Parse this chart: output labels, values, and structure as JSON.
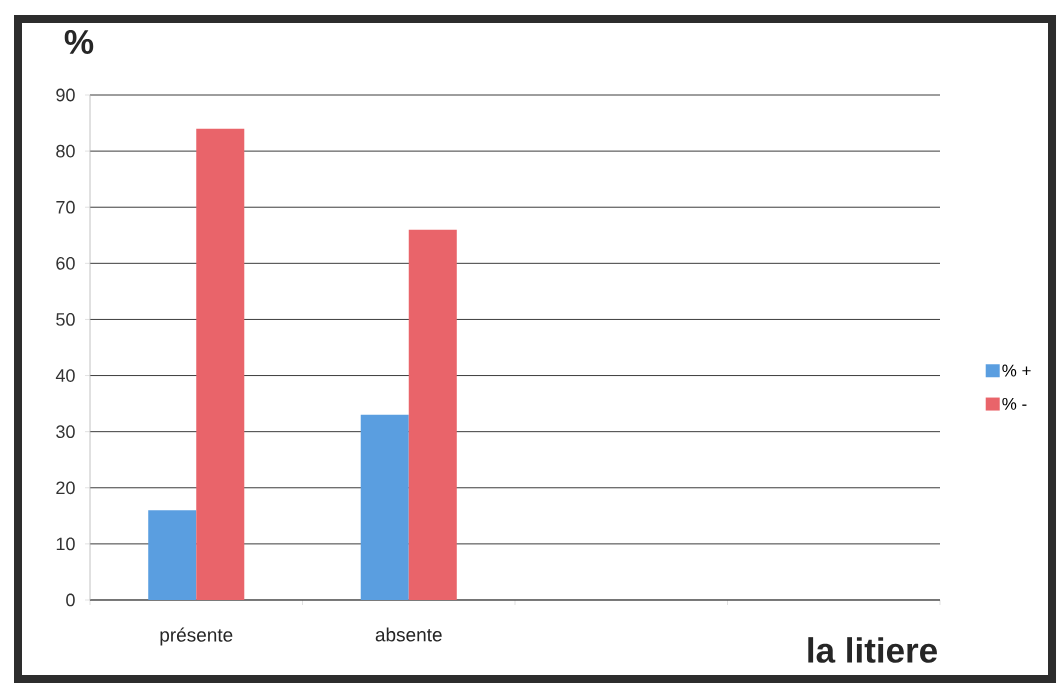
{
  "chart_data": {
    "type": "bar",
    "xlabel": "la litiere",
    "ylabel": "%",
    "categories": [
      "présente",
      "absente",
      null,
      null
    ],
    "series": [
      {
        "name": "% +",
        "color": "#5a9ee0",
        "values": [
          16,
          33,
          null,
          null
        ]
      },
      {
        "name": "% -",
        "color": "#e9646a",
        "values": [
          84,
          66,
          null,
          null
        ]
      }
    ],
    "ylim": [
      0,
      90
    ],
    "yticks": [
      0,
      10,
      20,
      30,
      40,
      50,
      60,
      70,
      80,
      90
    ],
    "grid": "y",
    "legend": "right"
  }
}
